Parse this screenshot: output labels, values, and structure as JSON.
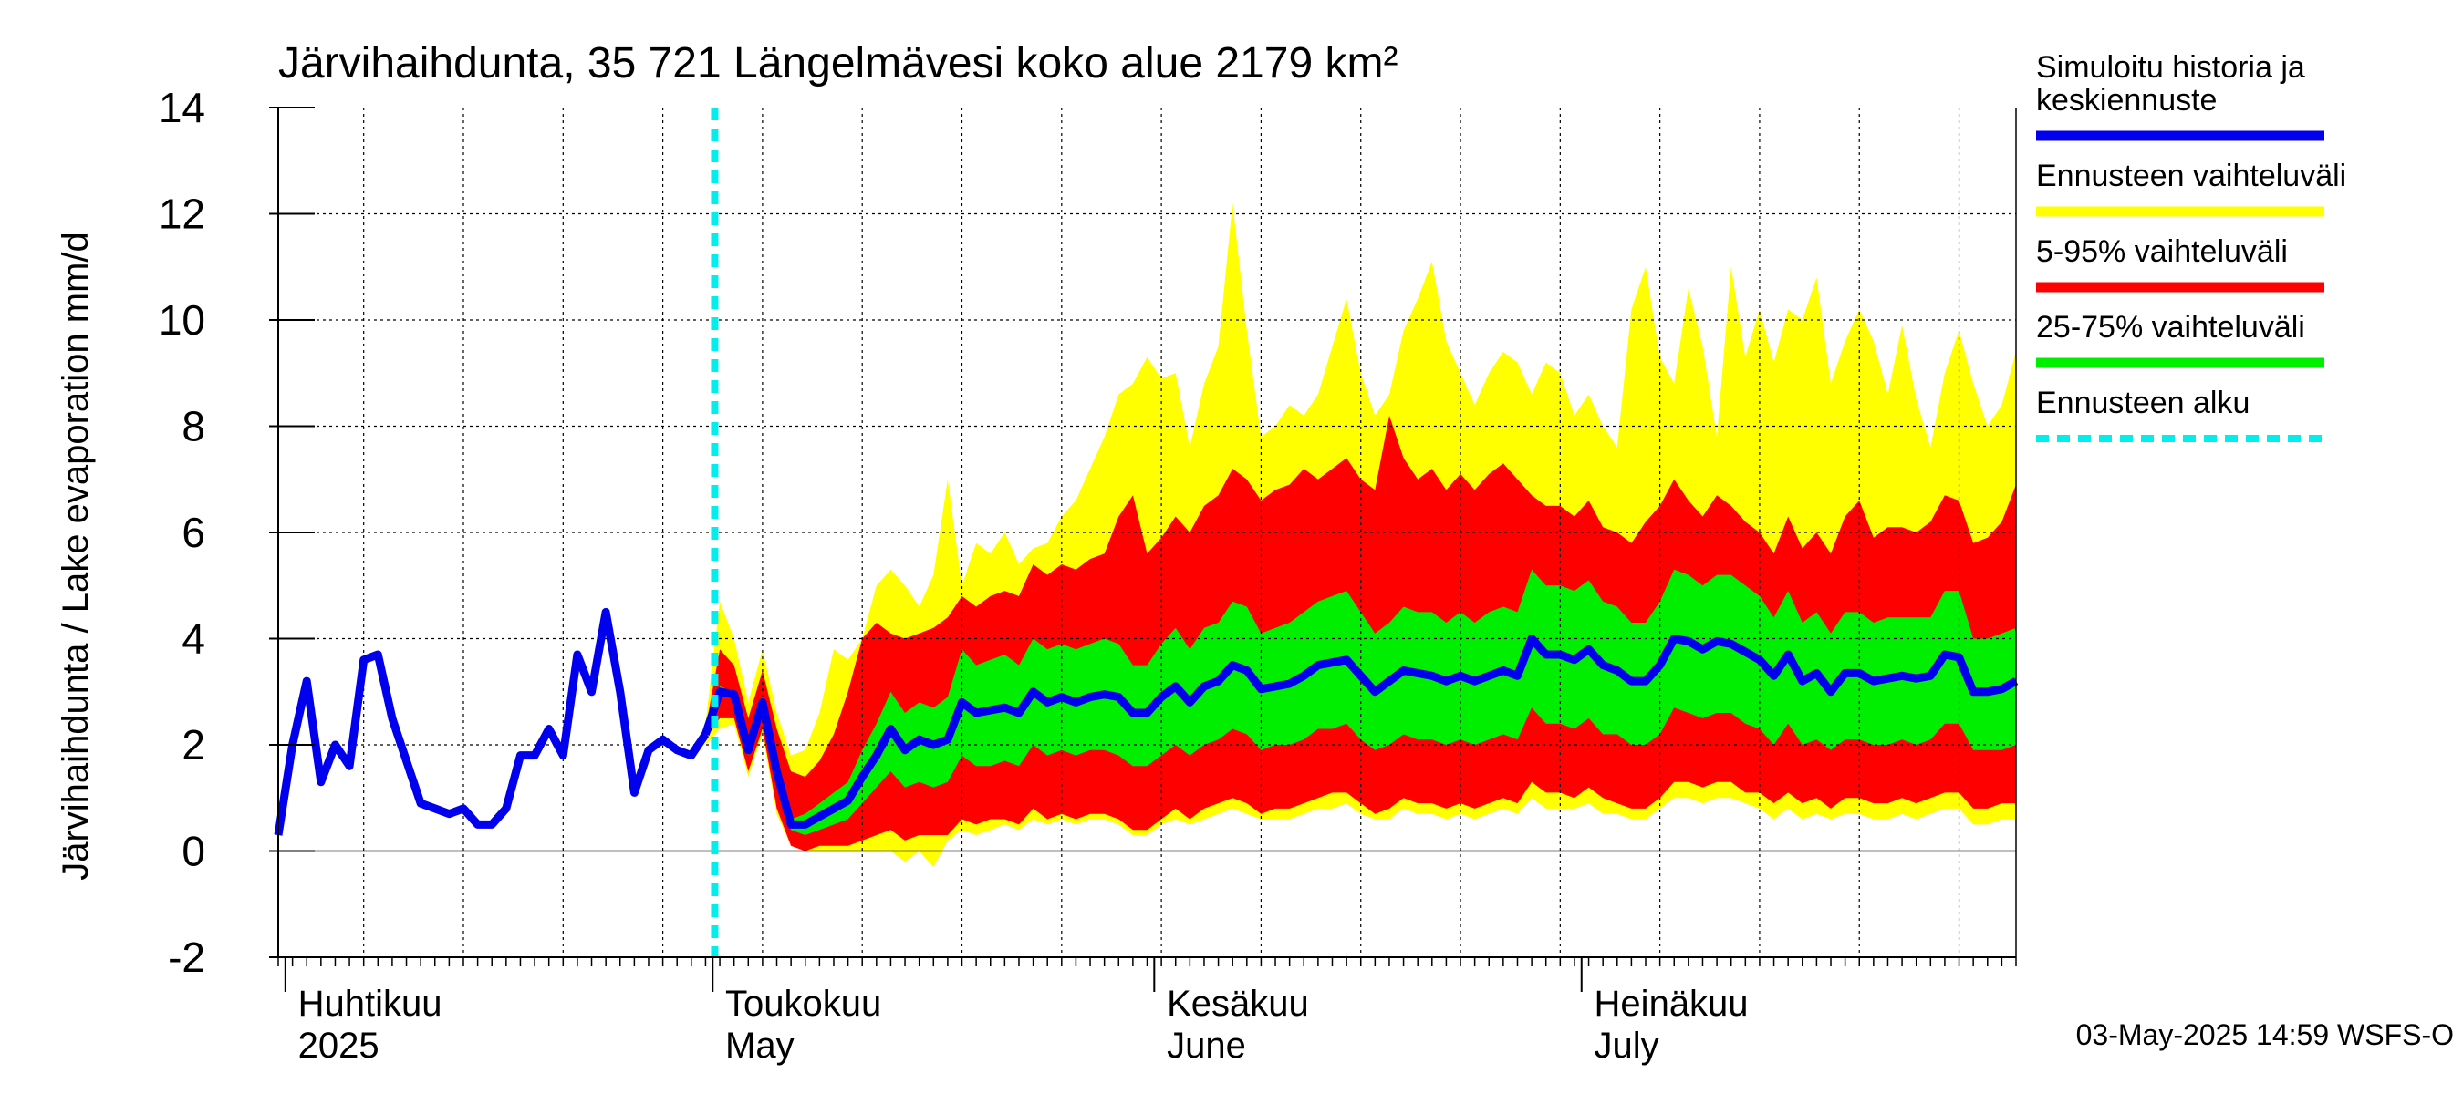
{
  "chart_data": {
    "type": "area",
    "title": "Järvihaihdunta, 35 721 Längelmävesi koko alue 2179 km²",
    "ylabel": "Järvihaihdunta / Lake evaporation   mm/d",
    "ylim": [
      -2,
      14
    ],
    "yticks": [
      -2,
      0,
      2,
      4,
      6,
      8,
      10,
      12,
      14
    ],
    "ytick_labels": [
      "-2",
      "0",
      "2",
      "4",
      "6",
      "8",
      "10",
      "12",
      "14"
    ],
    "xlim": [
      "2025-03-31",
      "2025-07-31"
    ],
    "grid": true,
    "month_labels": [
      {
        "fi": "Huhtikuu",
        "en": "2025",
        "date": "2025-04-01"
      },
      {
        "fi": "Toukokuu",
        "en": "May",
        "date": "2025-05-01"
      },
      {
        "fi": "Kesäkuu",
        "en": "June",
        "date": "2025-06-01"
      },
      {
        "fi": "Heinäkuu",
        "en": "July",
        "date": "2025-07-01"
      }
    ],
    "forecast_start": "2025-04-30",
    "legend_position": "right",
    "legend": [
      {
        "label": "Simuloitu historia ja keskiennuste",
        "lines": [
          "Simuloitu historia ja",
          "keskiennuste"
        ],
        "color": "#0000ee",
        "style": "solid"
      },
      {
        "label": "Ennusteen vaihteluväli",
        "lines": [
          "Ennusteen vaihteluväli"
        ],
        "color": "#ffff00",
        "style": "solid"
      },
      {
        "label": "5-95% vaihteluväli",
        "lines": [
          "5-95% vaihteluväli"
        ],
        "color": "#ff0000",
        "style": "solid"
      },
      {
        "label": "25-75% vaihteluväli",
        "lines": [
          "25-75% vaihteluväli"
        ],
        "color": "#00ee00",
        "style": "solid"
      },
      {
        "label": "Ennusteen alku",
        "lines": [
          "Ennusteen alku"
        ],
        "color": "#00eeee",
        "style": "dashed"
      }
    ],
    "history": {
      "dates": [
        "2025-03-31",
        "2025-04-01",
        "2025-04-02",
        "2025-04-03",
        "2025-04-04",
        "2025-04-05",
        "2025-04-06",
        "2025-04-07",
        "2025-04-08",
        "2025-04-09",
        "2025-04-10",
        "2025-04-11",
        "2025-04-12",
        "2025-04-13",
        "2025-04-14",
        "2025-04-15",
        "2025-04-16",
        "2025-04-17",
        "2025-04-18",
        "2025-04-19",
        "2025-04-20",
        "2025-04-21",
        "2025-04-22",
        "2025-04-23",
        "2025-04-24",
        "2025-04-25",
        "2025-04-26",
        "2025-04-27",
        "2025-04-28",
        "2025-04-29",
        "2025-04-30"
      ],
      "values": [
        0.3,
        2.0,
        3.2,
        1.3,
        2.0,
        1.6,
        3.6,
        3.7,
        2.5,
        1.7,
        0.9,
        0.8,
        0.7,
        0.8,
        0.5,
        0.5,
        0.8,
        1.8,
        1.8,
        2.3,
        1.8,
        3.7,
        3.0,
        4.5,
        3.0,
        1.1,
        1.9,
        2.1,
        1.9,
        1.8,
        2.2
      ]
    },
    "forecast": {
      "start_date": "2025-04-30",
      "dates": [
        "2025-04-30",
        "2025-05-01",
        "2025-05-02",
        "2025-05-03",
        "2025-05-04",
        "2025-05-05",
        "2025-05-06",
        "2025-05-07",
        "2025-05-08",
        "2025-05-09",
        "2025-05-10",
        "2025-05-11",
        "2025-05-12",
        "2025-05-13",
        "2025-05-14",
        "2025-05-15",
        "2025-05-16",
        "2025-05-17",
        "2025-05-18",
        "2025-05-19",
        "2025-05-20",
        "2025-05-21",
        "2025-05-22",
        "2025-05-23",
        "2025-05-24",
        "2025-05-25",
        "2025-05-26",
        "2025-05-27",
        "2025-05-28",
        "2025-05-29",
        "2025-05-30",
        "2025-05-31",
        "2025-06-01",
        "2025-06-02",
        "2025-06-03",
        "2025-06-04",
        "2025-06-05",
        "2025-06-06",
        "2025-06-07",
        "2025-06-08",
        "2025-06-09",
        "2025-06-10",
        "2025-06-11",
        "2025-06-12",
        "2025-06-13",
        "2025-06-14",
        "2025-06-15",
        "2025-06-16",
        "2025-06-17",
        "2025-06-18",
        "2025-06-19",
        "2025-06-20",
        "2025-06-21",
        "2025-06-22",
        "2025-06-23",
        "2025-06-24",
        "2025-06-25",
        "2025-06-26",
        "2025-06-27",
        "2025-06-28",
        "2025-06-29",
        "2025-06-30",
        "2025-07-01",
        "2025-07-02",
        "2025-07-03",
        "2025-07-04",
        "2025-07-05",
        "2025-07-06",
        "2025-07-07",
        "2025-07-08",
        "2025-07-09",
        "2025-07-10",
        "2025-07-11",
        "2025-07-12",
        "2025-07-13",
        "2025-07-14",
        "2025-07-15",
        "2025-07-16",
        "2025-07-17",
        "2025-07-18",
        "2025-07-19",
        "2025-07-20",
        "2025-07-21",
        "2025-07-22",
        "2025-07-23",
        "2025-07-24",
        "2025-07-25",
        "2025-07-26",
        "2025-07-27",
        "2025-07-28",
        "2025-07-29",
        "2025-07-30",
        "2025-07-31"
      ],
      "median": [
        2.2,
        3.0,
        2.95,
        1.9,
        2.8,
        1.5,
        0.5,
        0.5,
        0.65,
        0.8,
        0.95,
        1.4,
        1.8,
        2.3,
        1.9,
        2.1,
        2.0,
        2.1,
        2.8,
        2.6,
        2.65,
        2.7,
        2.6,
        3.0,
        2.8,
        2.9,
        2.8,
        2.9,
        2.95,
        2.9,
        2.6,
        2.6,
        2.9,
        3.1,
        2.8,
        3.1,
        3.2,
        3.5,
        3.4,
        3.05,
        3.1,
        3.15,
        3.3,
        3.5,
        3.55,
        3.6,
        3.3,
        3.0,
        3.2,
        3.4,
        3.35,
        3.3,
        3.2,
        3.3,
        3.2,
        3.3,
        3.4,
        3.3,
        4.0,
        3.7,
        3.7,
        3.6,
        3.8,
        3.5,
        3.4,
        3.2,
        3.2,
        3.5,
        4.0,
        3.95,
        3.8,
        3.95,
        3.9,
        3.75,
        3.6,
        3.3,
        3.7,
        3.2,
        3.35,
        3.0,
        3.35,
        3.35,
        3.2,
        3.25,
        3.3,
        3.25,
        3.3,
        3.7,
        3.65,
        3.0,
        3.0,
        3.05,
        3.2
      ],
      "p25": [
        2.2,
        3.0,
        2.9,
        1.8,
        2.7,
        1.3,
        0.4,
        0.3,
        0.4,
        0.5,
        0.6,
        0.9,
        1.2,
        1.5,
        1.2,
        1.3,
        1.2,
        1.3,
        1.8,
        1.6,
        1.6,
        1.7,
        1.6,
        2.0,
        1.8,
        1.9,
        1.8,
        1.9,
        1.9,
        1.8,
        1.6,
        1.6,
        1.8,
        2.0,
        1.8,
        2.0,
        2.1,
        2.3,
        2.2,
        1.9,
        2.0,
        2.0,
        2.1,
        2.3,
        2.3,
        2.4,
        2.1,
        1.9,
        2.0,
        2.2,
        2.1,
        2.1,
        2.0,
        2.1,
        2.0,
        2.1,
        2.2,
        2.1,
        2.7,
        2.4,
        2.4,
        2.3,
        2.5,
        2.2,
        2.2,
        2.0,
        2.0,
        2.2,
        2.7,
        2.6,
        2.5,
        2.6,
        2.6,
        2.4,
        2.3,
        2.0,
        2.4,
        2.0,
        2.1,
        1.9,
        2.1,
        2.1,
        2.0,
        2.0,
        2.1,
        2.0,
        2.1,
        2.4,
        2.4,
        1.9,
        1.9,
        1.9,
        2.0
      ],
      "p75": [
        2.2,
        3.1,
        3.0,
        2.0,
        2.9,
        1.6,
        0.6,
        0.7,
        0.9,
        1.1,
        1.3,
        1.9,
        2.4,
        3.0,
        2.6,
        2.8,
        2.7,
        2.9,
        3.8,
        3.5,
        3.6,
        3.7,
        3.5,
        4.0,
        3.8,
        3.9,
        3.8,
        3.9,
        4.0,
        3.9,
        3.5,
        3.5,
        3.9,
        4.2,
        3.8,
        4.2,
        4.3,
        4.7,
        4.6,
        4.1,
        4.2,
        4.3,
        4.5,
        4.7,
        4.8,
        4.9,
        4.5,
        4.1,
        4.3,
        4.6,
        4.5,
        4.5,
        4.3,
        4.5,
        4.3,
        4.5,
        4.6,
        4.5,
        5.3,
        5.0,
        5.0,
        4.9,
        5.1,
        4.7,
        4.6,
        4.3,
        4.3,
        4.7,
        5.3,
        5.2,
        5.0,
        5.2,
        5.2,
        5.0,
        4.8,
        4.4,
        4.9,
        4.3,
        4.5,
        4.1,
        4.5,
        4.5,
        4.3,
        4.4,
        4.4,
        4.4,
        4.4,
        4.9,
        4.9,
        4.0,
        4.0,
        4.1,
        4.2
      ],
      "p05": [
        2.1,
        2.5,
        2.5,
        1.5,
        2.3,
        0.8,
        0.1,
        0.0,
        0.1,
        0.1,
        0.1,
        0.2,
        0.3,
        0.4,
        0.2,
        0.3,
        0.3,
        0.3,
        0.6,
        0.5,
        0.6,
        0.6,
        0.5,
        0.8,
        0.6,
        0.7,
        0.6,
        0.7,
        0.7,
        0.6,
        0.4,
        0.4,
        0.6,
        0.8,
        0.6,
        0.8,
        0.9,
        1.0,
        0.9,
        0.7,
        0.8,
        0.8,
        0.9,
        1.0,
        1.1,
        1.1,
        0.9,
        0.7,
        0.8,
        1.0,
        0.9,
        0.9,
        0.8,
        0.9,
        0.8,
        0.9,
        1.0,
        0.9,
        1.3,
        1.1,
        1.1,
        1.0,
        1.2,
        1.0,
        0.9,
        0.8,
        0.8,
        1.0,
        1.3,
        1.3,
        1.2,
        1.3,
        1.3,
        1.1,
        1.1,
        0.9,
        1.1,
        0.9,
        1.0,
        0.8,
        1.0,
        1.0,
        0.9,
        0.9,
        1.0,
        0.9,
        1.0,
        1.1,
        1.1,
        0.8,
        0.8,
        0.9,
        0.9
      ],
      "p95": [
        2.3,
        3.8,
        3.5,
        2.5,
        3.4,
        2.3,
        1.5,
        1.4,
        1.7,
        2.2,
        3.0,
        4.0,
        4.3,
        4.1,
        4.0,
        4.1,
        4.2,
        4.4,
        4.8,
        4.6,
        4.8,
        4.9,
        4.8,
        5.4,
        5.2,
        5.4,
        5.3,
        5.5,
        5.6,
        6.3,
        6.7,
        5.6,
        5.9,
        6.3,
        6.0,
        6.5,
        6.7,
        7.2,
        7.0,
        6.6,
        6.8,
        6.9,
        7.2,
        7.0,
        7.2,
        7.4,
        7.0,
        6.8,
        8.2,
        7.4,
        7.0,
        7.2,
        6.8,
        7.1,
        6.8,
        7.1,
        7.3,
        7.0,
        6.7,
        6.5,
        6.5,
        6.3,
        6.6,
        6.1,
        6.0,
        5.8,
        6.2,
        6.5,
        7.0,
        6.6,
        6.3,
        6.7,
        6.5,
        6.2,
        6.0,
        5.6,
        6.3,
        5.7,
        6.0,
        5.6,
        6.3,
        6.6,
        5.9,
        6.1,
        6.1,
        6.0,
        6.2,
        6.7,
        6.6,
        5.8,
        5.9,
        6.2,
        6.9
      ],
      "min": [
        2.0,
        2.3,
        2.4,
        1.4,
        2.2,
        0.7,
        0.1,
        0.0,
        0.0,
        0.0,
        0.0,
        0.0,
        0.0,
        0.0,
        -0.2,
        0.0,
        -0.3,
        0.2,
        0.4,
        0.3,
        0.4,
        0.5,
        0.4,
        0.6,
        0.5,
        0.6,
        0.5,
        0.6,
        0.6,
        0.5,
        0.3,
        0.3,
        0.5,
        0.6,
        0.5,
        0.6,
        0.7,
        0.8,
        0.7,
        0.6,
        0.6,
        0.6,
        0.7,
        0.8,
        0.8,
        0.9,
        0.7,
        0.6,
        0.6,
        0.8,
        0.7,
        0.7,
        0.6,
        0.7,
        0.6,
        0.7,
        0.8,
        0.7,
        1.0,
        0.8,
        0.8,
        0.8,
        0.9,
        0.7,
        0.7,
        0.6,
        0.6,
        0.8,
        1.0,
        1.0,
        0.9,
        1.0,
        1.0,
        0.9,
        0.8,
        0.6,
        0.8,
        0.6,
        0.7,
        0.6,
        0.7,
        0.7,
        0.6,
        0.6,
        0.7,
        0.6,
        0.7,
        0.8,
        0.8,
        0.5,
        0.5,
        0.6,
        0.6
      ],
      "max": [
        2.4,
        4.7,
        4.0,
        2.8,
        3.8,
        2.6,
        1.8,
        1.9,
        2.6,
        3.8,
        3.6,
        4.0,
        5.0,
        5.3,
        5.0,
        4.6,
        5.2,
        7.0,
        5.0,
        5.8,
        5.6,
        6.0,
        5.4,
        5.7,
        5.8,
        6.3,
        6.6,
        7.2,
        7.8,
        8.6,
        8.8,
        9.3,
        8.9,
        9.0,
        7.6,
        8.8,
        9.5,
        12.2,
        9.8,
        7.8,
        8.0,
        8.4,
        8.2,
        8.6,
        9.5,
        10.4,
        9.0,
        8.2,
        8.6,
        9.8,
        10.4,
        11.1,
        9.6,
        9.0,
        8.4,
        9.0,
        9.4,
        9.2,
        8.6,
        9.2,
        9.0,
        8.2,
        8.6,
        8.0,
        7.6,
        10.2,
        11.0,
        9.3,
        8.8,
        10.6,
        9.5,
        7.8,
        11.0,
        9.3,
        10.2,
        9.2,
        10.2,
        10.0,
        10.8,
        8.8,
        9.6,
        10.2,
        9.6,
        8.6,
        9.9,
        8.5,
        7.6,
        9.0,
        9.8,
        8.8,
        8.0,
        8.4,
        9.4
      ]
    }
  },
  "timestamp": "03-May-2025 14:59 WSFS-O"
}
